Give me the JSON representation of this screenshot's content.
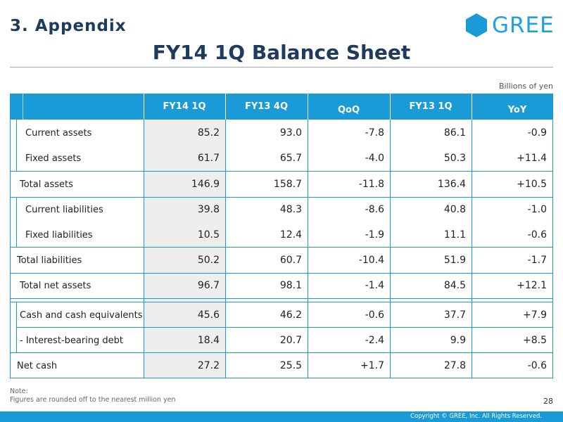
{
  "header": {
    "section": "3. Appendix",
    "logo_text": "GREE",
    "title": "FY14 1Q Balance Sheet",
    "units": "Billions of yen"
  },
  "table": {
    "columns": [
      "FY14 1Q",
      "FY13 4Q",
      "QoQ",
      "FY13 1Q",
      "YoY"
    ],
    "rows": [
      {
        "label": "Current assets",
        "values": [
          "85.2",
          "93.0",
          "-7.8",
          "86.1",
          "-0.9"
        ]
      },
      {
        "label": "Fixed assets",
        "values": [
          "61.7",
          "65.7",
          "-4.0",
          "50.3",
          "+11.4"
        ]
      },
      {
        "label": "Total assets",
        "values": [
          "146.9",
          "158.7",
          "-11.8",
          "136.4",
          "+10.5"
        ]
      },
      {
        "label": "Current liabilities",
        "values": [
          "39.8",
          "48.3",
          "-8.6",
          "40.8",
          "-1.0"
        ]
      },
      {
        "label": "Fixed liabilities",
        "values": [
          "10.5",
          "12.4",
          "-1.9",
          "11.1",
          "-0.6"
        ]
      },
      {
        "label": "Total liabilities",
        "values": [
          "50.2",
          "60.7",
          "-10.4",
          "51.9",
          "-1.7"
        ]
      },
      {
        "label": "Total net assets",
        "values": [
          "96.7",
          "98.1",
          "-1.4",
          "84.5",
          "+12.1"
        ]
      },
      {
        "label": "Cash and cash equivalents",
        "values": [
          "45.6",
          "46.2",
          "-0.6",
          "37.7",
          "+7.9"
        ]
      },
      {
        "label": "- Interest-bearing debt",
        "values": [
          "18.4",
          "20.7",
          "-2.4",
          "9.9",
          "+8.5"
        ]
      },
      {
        "label": "Net cash",
        "values": [
          "27.2",
          "25.5",
          "+1.7",
          "27.8",
          "-0.6"
        ]
      }
    ]
  },
  "note": {
    "heading": "Note:",
    "text": "Figures are rounded off to the nearest million yen"
  },
  "page_number": "28",
  "footer": {
    "copyright": "Copyright © GREE, Inc. All Rights Reserved."
  },
  "colors": {
    "accent": "#1a9ad6",
    "title": "#1f3a5f",
    "shade": "#eeeeee"
  }
}
